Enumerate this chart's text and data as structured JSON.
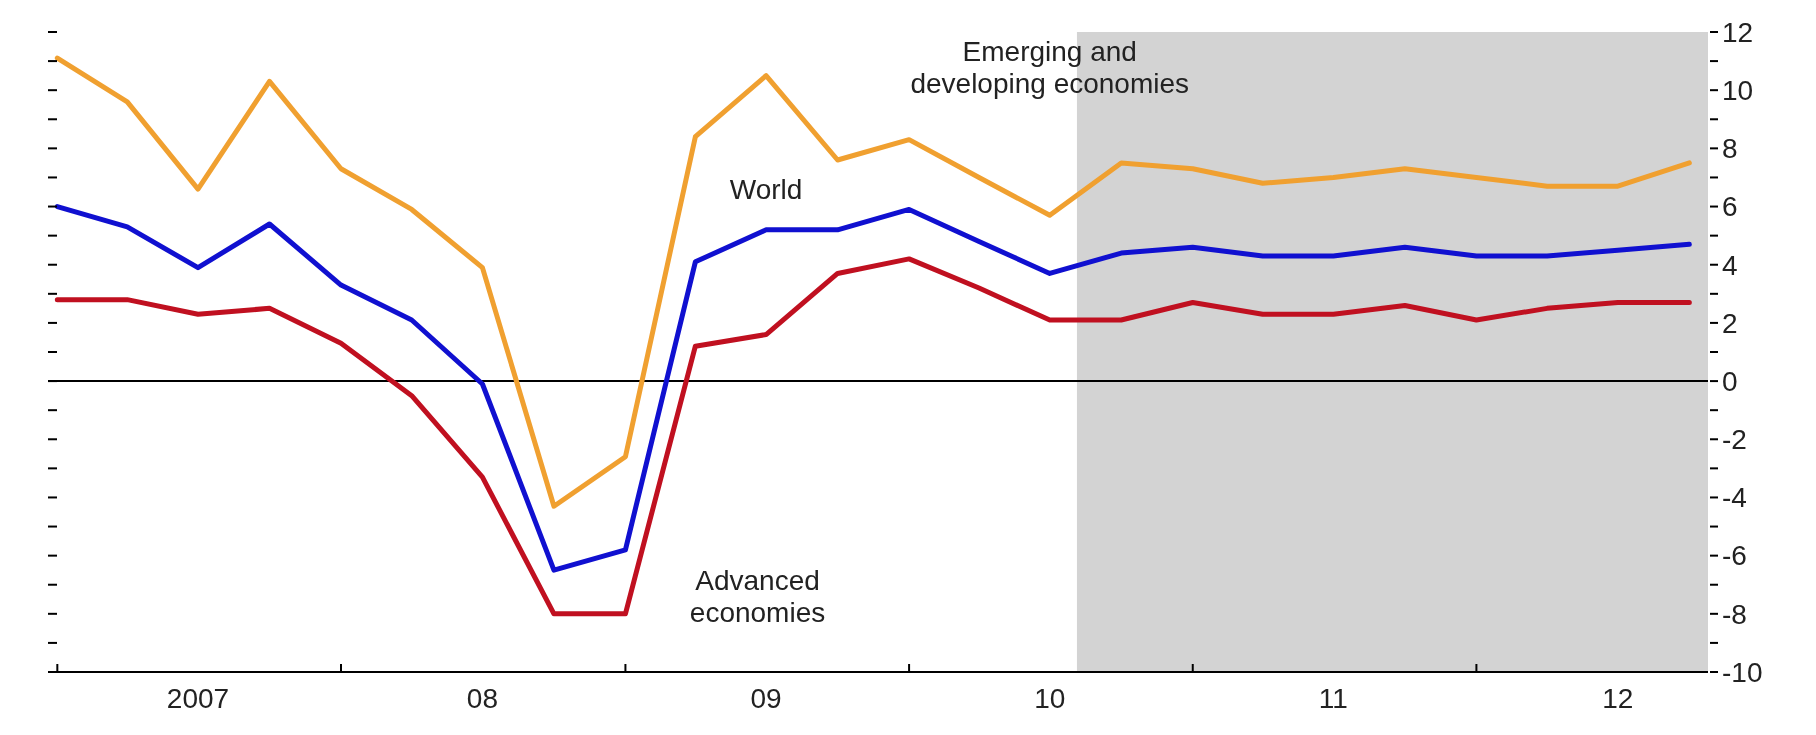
{
  "chart_data": {
    "type": "line",
    "x": [
      "2007-01",
      "2007-04",
      "2007-07",
      "2007-10",
      "2008-01",
      "2008-04",
      "2008-07",
      "2008-10",
      "2009-01",
      "2009-04",
      "2009-07",
      "2009-10",
      "2010-01",
      "2010-04",
      "2010-07",
      "2010-10",
      "2011-01",
      "2011-04",
      "2011-07",
      "2011-10",
      "2012-01",
      "2012-04",
      "2012-07",
      "2012-10"
    ],
    "series": [
      {
        "name": "Emerging and\ndeveloping economies",
        "color": "#f0a030",
        "values": [
          11.1,
          9.6,
          6.6,
          10.3,
          7.3,
          5.9,
          3.9,
          -4.3,
          -2.6,
          8.4,
          10.5,
          7.6,
          8.3,
          7.0,
          5.7,
          7.5,
          7.3,
          6.8,
          7.0,
          7.3,
          7.0,
          6.7,
          6.7,
          7.5
        ]
      },
      {
        "name": "World",
        "color": "#1010d0",
        "values": [
          6.0,
          5.3,
          3.9,
          5.4,
          3.3,
          2.1,
          -0.1,
          -6.5,
          -5.8,
          4.1,
          5.2,
          5.2,
          5.9,
          4.8,
          3.7,
          4.4,
          4.6,
          4.3,
          4.3,
          4.6,
          4.3,
          4.3,
          4.5,
          4.7
        ]
      },
      {
        "name": "Advanced\neconomies",
        "color": "#c01020",
        "values": [
          2.8,
          2.8,
          2.3,
          2.5,
          1.3,
          -0.5,
          -3.3,
          -8.0,
          -8.0,
          1.2,
          1.6,
          3.7,
          4.2,
          3.2,
          2.1,
          2.1,
          2.7,
          2.3,
          2.3,
          2.6,
          2.1,
          2.5,
          2.7,
          2.7
        ]
      }
    ],
    "xlim": [
      "2006-12-20",
      "2012-10-25"
    ],
    "xticks": [
      {
        "value": "2007-01-01",
        "label": null
      },
      {
        "value": "2007-07-01",
        "label": "2007"
      },
      {
        "value": "2008-01-01",
        "label": null
      },
      {
        "value": "2008-07-01",
        "label": "08"
      },
      {
        "value": "2009-01-01",
        "label": null
      },
      {
        "value": "2009-07-01",
        "label": "09"
      },
      {
        "value": "2010-01-01",
        "label": null
      },
      {
        "value": "2010-07-01",
        "label": "10"
      },
      {
        "value": "2011-01-01",
        "label": null
      },
      {
        "value": "2011-07-01",
        "label": "11"
      },
      {
        "value": "2012-01-01",
        "label": null
      },
      {
        "value": "2012-07-01",
        "label": "12"
      }
    ],
    "ylim": [
      -10,
      12
    ],
    "yticks": [
      -10,
      {
        "value": -9,
        "label": null
      },
      -8,
      {
        "value": -7,
        "label": null
      },
      -6,
      {
        "value": -5,
        "label": null
      },
      -4,
      {
        "value": -3,
        "label": null
      },
      -2,
      {
        "value": -1,
        "label": null
      },
      0,
      {
        "value": 1,
        "label": null
      },
      2,
      {
        "value": 3,
        "label": null
      },
      4,
      {
        "value": 5,
        "label": null
      },
      6,
      {
        "value": 7,
        "label": null
      },
      8,
      {
        "value": 9,
        "label": null
      },
      10,
      {
        "value": 11,
        "label": null
      },
      12
    ],
    "bands": [
      {
        "axis": "x",
        "from": "2010-08-05",
        "to": "2012-10-25",
        "color": "#d3d3d3"
      }
    ],
    "ref_lines": [
      {
        "axis": "y",
        "value": 0,
        "color": "#000000"
      }
    ],
    "line_style": "solid"
  }
}
